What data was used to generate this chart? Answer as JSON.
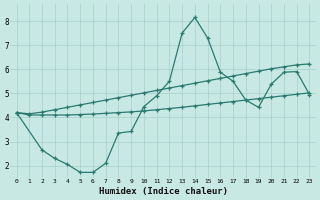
{
  "bg_color": "#c8e8e4",
  "grid_color": "#a8d0cc",
  "line_color": "#2a7a6e",
  "xlabel": "Humidex (Indice chaleur)",
  "xlim": [
    -0.5,
    23.5
  ],
  "ylim": [
    1.5,
    8.7
  ],
  "yticks": [
    2,
    3,
    4,
    5,
    6,
    7,
    8
  ],
  "xticks": [
    0,
    1,
    2,
    3,
    4,
    5,
    6,
    7,
    8,
    9,
    10,
    11,
    12,
    13,
    14,
    15,
    16,
    17,
    18,
    19,
    20,
    21,
    22,
    23
  ],
  "s1_x": [
    0,
    1,
    2,
    3,
    4,
    5,
    6,
    7,
    8,
    9,
    10,
    11,
    12,
    13,
    14,
    15,
    16,
    17,
    18,
    19,
    20,
    21,
    22,
    23
  ],
  "s1_y": [
    4.2,
    4.1,
    4.1,
    4.1,
    4.1,
    4.12,
    4.14,
    4.17,
    4.2,
    4.23,
    4.27,
    4.32,
    4.37,
    4.42,
    4.48,
    4.54,
    4.6,
    4.66,
    4.72,
    4.78,
    4.84,
    4.9,
    4.96,
    5.02
  ],
  "s2_x": [
    0,
    1,
    2,
    3,
    4,
    5,
    6,
    7,
    8,
    9,
    10,
    11,
    12,
    13,
    14,
    15,
    16,
    17,
    18,
    19,
    20,
    21,
    22,
    23
  ],
  "s2_y": [
    4.2,
    4.15,
    4.22,
    4.32,
    4.42,
    4.52,
    4.62,
    4.72,
    4.82,
    4.92,
    5.02,
    5.12,
    5.22,
    5.32,
    5.42,
    5.52,
    5.62,
    5.72,
    5.82,
    5.92,
    6.02,
    6.1,
    6.18,
    6.22
  ],
  "s3_x": [
    0,
    2,
    3,
    4,
    5,
    6,
    7,
    8,
    9,
    10,
    11,
    12,
    13,
    14,
    15,
    16,
    17,
    18,
    19,
    20,
    21,
    22,
    23
  ],
  "s3_y": [
    4.2,
    2.65,
    2.3,
    2.05,
    1.72,
    1.72,
    2.1,
    3.35,
    3.42,
    4.45,
    4.9,
    5.5,
    7.5,
    8.15,
    7.3,
    5.88,
    5.5,
    4.72,
    4.42,
    5.38,
    5.88,
    5.9,
    4.95
  ]
}
